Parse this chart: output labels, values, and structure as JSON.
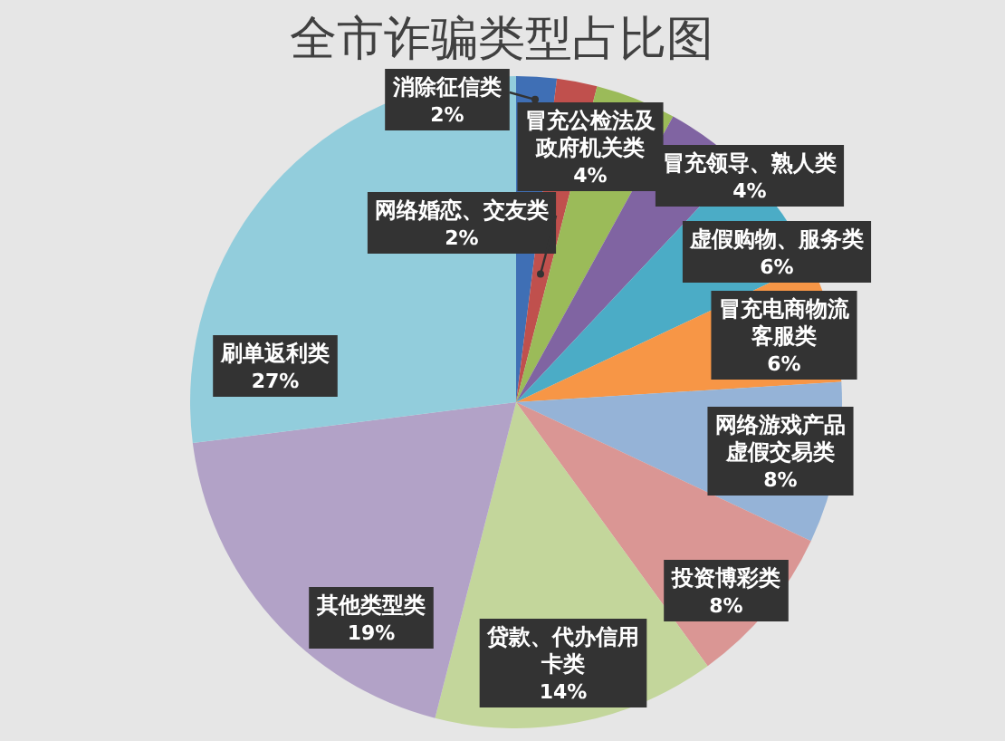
{
  "chart_data": {
    "type": "pie",
    "title": "全市诈骗类型占比图",
    "categories": [
      "消除征信类",
      "网络婚恋、交友类",
      "冒充公检法及政府机关类",
      "冒充领导、熟人类",
      "虚假购物、服务类",
      "冒充电商物流客服类",
      "网络游戏产品虚假交易类",
      "投资博彩类",
      "贷款、代办信用卡类",
      "其他类型类",
      "刷单返利类"
    ],
    "values": [
      2,
      2,
      4,
      4,
      6,
      6,
      8,
      8,
      14,
      19,
      27
    ],
    "colors": [
      "#3f6fb5",
      "#c0504d",
      "#9bbb59",
      "#8064a2",
      "#4bacc6",
      "#f79646",
      "#95b3d7",
      "#da9694",
      "#c3d69b",
      "#b2a2c7",
      "#92cddc"
    ],
    "value_labels": [
      "2%",
      "2%",
      "4%",
      "4%",
      "6%",
      "6%",
      "8%",
      "8%",
      "14%",
      "19%",
      "27%"
    ]
  }
}
